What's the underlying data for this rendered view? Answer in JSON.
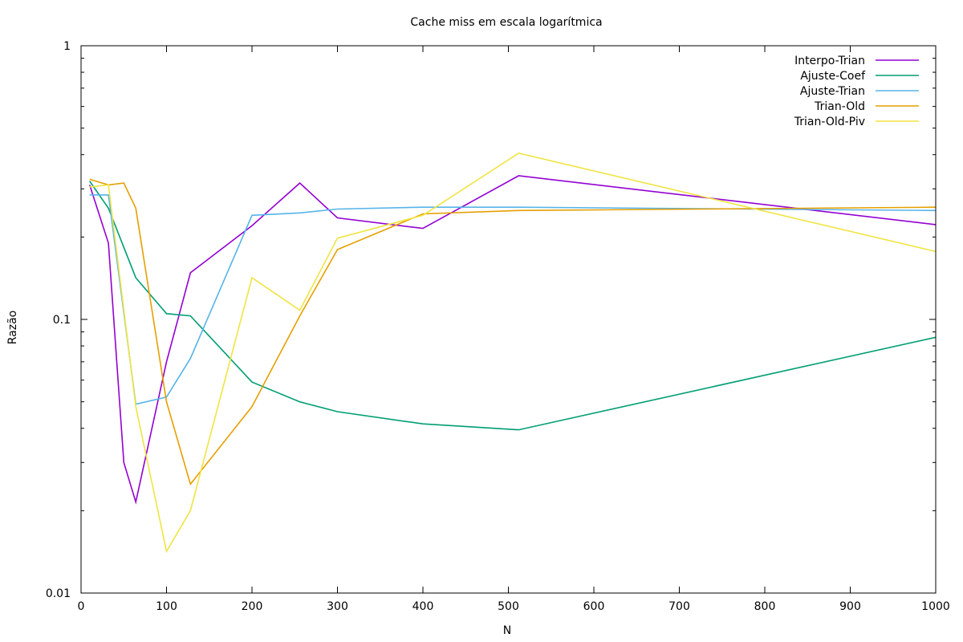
{
  "chart_data": {
    "type": "line",
    "title": "Cache miss em escala logarítmica",
    "xlabel": "N",
    "ylabel": "Razão",
    "xlim": [
      0,
      1000
    ],
    "ylim": [
      0.01,
      1
    ],
    "yscale": "log",
    "x_ticks": [
      "0",
      "100",
      "200",
      "300",
      "400",
      "500",
      "600",
      "700",
      "800",
      "900",
      "1000"
    ],
    "y_ticks": [
      "1",
      "0.1",
      "0.01"
    ],
    "legend_position": "top-right",
    "series": [
      {
        "name": "Interpo-Trian",
        "color": "#9400d3",
        "x": [
          10,
          32,
          50,
          64,
          100,
          128,
          200,
          256,
          300,
          400,
          512,
          1000
        ],
        "y": [
          0.31,
          0.19,
          0.03,
          0.0215,
          0.07,
          0.148,
          0.22,
          0.315,
          0.235,
          0.215,
          0.335,
          0.222
        ]
      },
      {
        "name": "Ajuste-Coef",
        "color": "#009e73",
        "x": [
          10,
          32,
          64,
          100,
          128,
          200,
          256,
          300,
          400,
          512,
          1000
        ],
        "y": [
          0.32,
          0.255,
          0.142,
          0.105,
          0.103,
          0.059,
          0.05,
          0.046,
          0.0415,
          0.0395,
          0.086
        ]
      },
      {
        "name": "Ajuste-Trian",
        "color": "#56b4e9",
        "x": [
          10,
          32,
          64,
          100,
          128,
          200,
          256,
          300,
          400,
          512,
          1000
        ],
        "y": [
          0.285,
          0.285,
          0.049,
          0.052,
          0.072,
          0.24,
          0.245,
          0.253,
          0.257,
          0.257,
          0.25
        ]
      },
      {
        "name": "Trian-Old",
        "color": "#e69f00",
        "x": [
          10,
          32,
          50,
          64,
          100,
          128,
          200,
          256,
          300,
          400,
          512,
          1000
        ],
        "y": [
          0.325,
          0.31,
          0.315,
          0.255,
          0.05,
          0.025,
          0.048,
          0.103,
          0.18,
          0.243,
          0.25,
          0.257
        ]
      },
      {
        "name": "Trian-Old-Piv",
        "color": "#f0e442",
        "x": [
          10,
          32,
          64,
          100,
          128,
          200,
          256,
          300,
          400,
          512,
          1000
        ],
        "y": [
          0.305,
          0.31,
          0.048,
          0.0142,
          0.02,
          0.142,
          0.108,
          0.198,
          0.24,
          0.405,
          0.177
        ]
      }
    ]
  }
}
